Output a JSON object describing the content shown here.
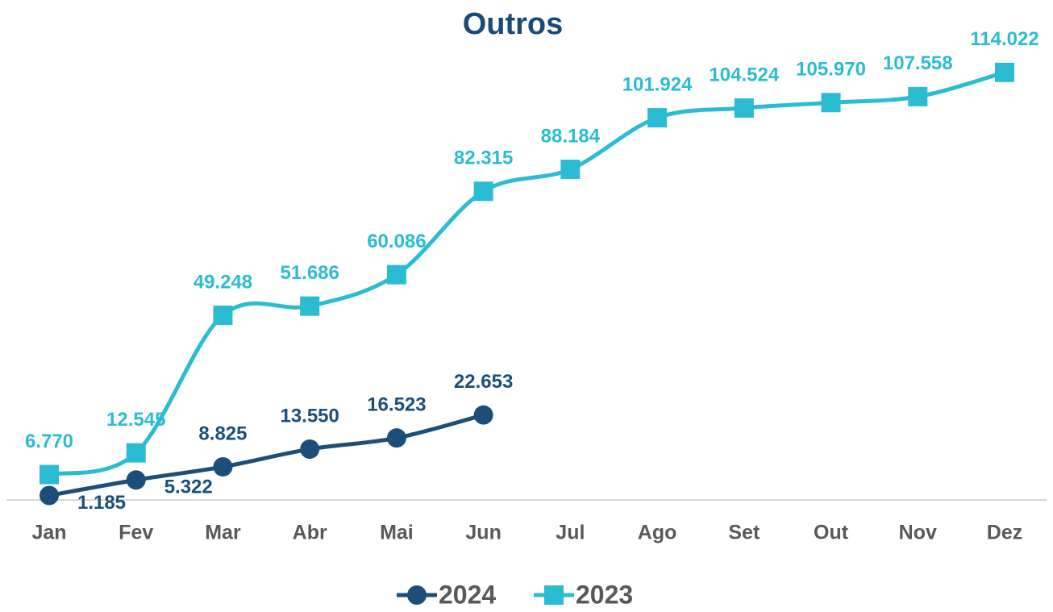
{
  "chart_data": {
    "type": "line",
    "title": "Outros",
    "categories": [
      "Jan",
      "Fev",
      "Mar",
      "Abr",
      "Mai",
      "Jun",
      "Jul",
      "Ago",
      "Set",
      "Out",
      "Nov",
      "Dez"
    ],
    "series": [
      {
        "name": "2024",
        "color": "#1b4f7a",
        "marker": "circle",
        "values": [
          1185,
          5322,
          8825,
          13550,
          16523,
          22653,
          null,
          null,
          null,
          null,
          null,
          null
        ],
        "value_labels": [
          "1.185",
          "5.322",
          "8.825",
          "13.550",
          "16.523",
          "22.653",
          null,
          null,
          null,
          null,
          null,
          null
        ]
      },
      {
        "name": "2023",
        "color": "#2bbcd4",
        "marker": "square",
        "values": [
          6770,
          12545,
          49248,
          51686,
          60086,
          82315,
          88184,
          101924,
          104524,
          105970,
          107558,
          114022
        ],
        "value_labels": [
          "6.770",
          "12.545",
          "49.248",
          "51.686",
          "60.086",
          "82.315",
          "88.184",
          "101.924",
          "104.524",
          "105.970",
          "107.558",
          "114.022"
        ]
      }
    ],
    "ylim": [
      0,
      120000
    ],
    "legend": "bottom"
  }
}
